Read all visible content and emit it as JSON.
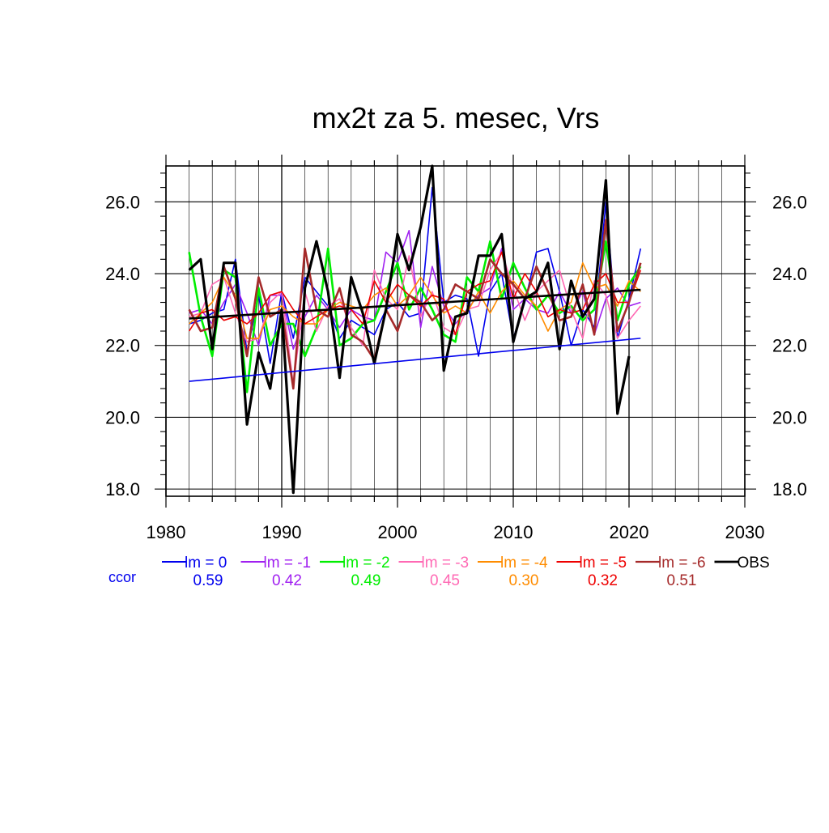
{
  "chart_data": {
    "type": "line",
    "title": "mx2t za 5. mesec, Vrs",
    "xlim": [
      1980,
      2030
    ],
    "ylim": [
      17.8,
      27.0
    ],
    "x_ticks": [
      "1980",
      "1990",
      "2000",
      "2010",
      "2020",
      "2030"
    ],
    "y_ticks": [
      "18.0",
      "20.0",
      "22.0",
      "24.0",
      "26.0"
    ],
    "grid": true,
    "legend_position": "bottom",
    "ccor_label": "ccor",
    "years": [
      1982,
      1983,
      1984,
      1985,
      1986,
      1987,
      1988,
      1989,
      1990,
      1991,
      1992,
      1993,
      1994,
      1995,
      1996,
      1997,
      1998,
      1999,
      2000,
      2001,
      2002,
      2003,
      2004,
      2005,
      2006,
      2007,
      2008,
      2009,
      2010,
      2011,
      2012,
      2013,
      2014,
      2015,
      2016,
      2017,
      2018,
      2019,
      2020,
      2021
    ],
    "series": [
      {
        "name": "lm = 0",
        "ccor": "0.59",
        "color": "#0000ee",
        "width": 1.6,
        "values": [
          22.6,
          22.7,
          22.9,
          23.0,
          24.4,
          21.8,
          23.4,
          21.5,
          23.5,
          22.2,
          23.9,
          23.5,
          23.1,
          22.2,
          22.7,
          22.5,
          22.3,
          23.0,
          23.2,
          22.8,
          22.9,
          26.4,
          23.2,
          23.4,
          23.3,
          21.7,
          23.5,
          24.0,
          22.2,
          23.2,
          24.6,
          24.7,
          23.5,
          22.0,
          23.0,
          22.5,
          26.0,
          22.2,
          23.3,
          24.7
        ]
      },
      {
        "name": "lm = -1",
        "ccor": "0.42",
        "color": "#a020f0",
        "width": 1.6,
        "values": [
          22.9,
          23.0,
          22.6,
          23.2,
          23.7,
          22.9,
          22.0,
          23.4,
          23.4,
          21.9,
          22.8,
          23.4,
          23.0,
          22.5,
          23.0,
          22.8,
          22.7,
          24.6,
          24.3,
          25.2,
          22.5,
          24.2,
          23.1,
          22.6,
          23.0,
          23.4,
          23.6,
          24.7,
          23.0,
          23.3,
          23.0,
          22.9,
          23.5,
          22.9,
          23.5,
          22.3,
          23.3,
          23.6,
          23.1,
          23.2
        ]
      },
      {
        "name": "lm = -2",
        "ccor": "0.49",
        "color": "#00ee00",
        "width": 2.6,
        "values": [
          24.6,
          22.8,
          21.7,
          24.1,
          23.9,
          20.7,
          23.6,
          22.0,
          22.6,
          22.6,
          21.7,
          22.5,
          24.7,
          22.0,
          22.2,
          22.6,
          22.7,
          23.5,
          24.3,
          23.0,
          23.6,
          23.0,
          22.3,
          22.1,
          23.9,
          23.5,
          24.9,
          23.3,
          24.3,
          23.6,
          23.0,
          23.4,
          22.9,
          23.1,
          22.7,
          23.0,
          24.9,
          22.7,
          23.7,
          24.2
        ]
      },
      {
        "name": "lm = -3",
        "ccor": "0.45",
        "color": "#ff69b4",
        "width": 1.6,
        "values": [
          22.8,
          22.9,
          23.7,
          23.9,
          22.9,
          22.1,
          22.2,
          23.2,
          23.5,
          20.9,
          23.5,
          22.4,
          23.1,
          23.3,
          22.5,
          22.0,
          24.1,
          23.3,
          23.0,
          24.5,
          22.8,
          23.5,
          22.5,
          22.3,
          23.0,
          23.1,
          24.1,
          24.6,
          23.6,
          22.7,
          23.5,
          23.8,
          24.1,
          23.0,
          22.2,
          23.8,
          23.4,
          22.2,
          22.7,
          23.1
        ]
      },
      {
        "name": "lm = -4",
        "ccor": "0.30",
        "color": "#ff8c00",
        "width": 1.6,
        "values": [
          22.6,
          22.9,
          23.2,
          23.9,
          23.4,
          22.2,
          22.2,
          23.0,
          23.1,
          22.8,
          22.6,
          22.6,
          23.0,
          23.2,
          23.1,
          23.0,
          23.4,
          23.6,
          23.1,
          23.4,
          23.9,
          23.4,
          22.9,
          23.1,
          22.9,
          23.5,
          22.9,
          23.5,
          23.8,
          23.4,
          23.1,
          22.4,
          23.0,
          23.2,
          24.3,
          23.6,
          23.7,
          23.1,
          23.8,
          23.5
        ]
      },
      {
        "name": "lm = -5",
        "ccor": "0.32",
        "color": "#ee0000",
        "width": 1.6,
        "values": [
          22.4,
          22.9,
          23.0,
          22.7,
          22.8,
          22.6,
          22.9,
          23.4,
          23.5,
          23.0,
          22.6,
          22.8,
          23.0,
          23.1,
          23.0,
          22.6,
          23.8,
          23.2,
          23.7,
          23.4,
          23.1,
          23.4,
          23.3,
          22.3,
          23.5,
          23.7,
          23.8,
          24.6,
          23.3,
          24.0,
          23.5,
          22.8,
          23.0,
          22.9,
          23.0,
          23.7,
          24.0,
          23.2,
          23.2,
          24.1
        ]
      },
      {
        "name": "lm = -6",
        "ccor": "0.51",
        "color": "#a52a2a",
        "width": 2.6,
        "values": [
          23.0,
          22.4,
          22.5,
          24.2,
          23.3,
          21.7,
          23.9,
          22.8,
          23.0,
          20.8,
          24.7,
          23.0,
          22.8,
          23.6,
          22.3,
          22.1,
          21.6,
          23.0,
          22.4,
          23.4,
          23.2,
          22.7,
          23.0,
          23.7,
          23.5,
          23.3,
          24.4,
          24.0,
          23.7,
          23.3,
          24.2,
          23.5,
          22.7,
          22.8,
          23.7,
          22.3,
          25.5,
          22.4,
          23.2,
          24.3
        ]
      },
      {
        "name": "OBS",
        "ccor": "",
        "color": "#000000",
        "width": 3.2,
        "values": [
          24.1,
          24.4,
          21.9,
          24.3,
          24.3,
          19.8,
          21.8,
          20.8,
          23.0,
          17.9,
          23.6,
          24.9,
          23.5,
          21.1,
          23.9,
          22.9,
          21.5,
          23.0,
          25.1,
          24.1,
          25.3,
          27.0,
          21.3,
          22.8,
          22.9,
          24.5,
          24.5,
          25.1,
          22.1,
          23.3,
          23.5,
          24.3,
          21.9,
          23.8,
          22.8,
          23.3,
          26.6,
          20.1,
          21.7,
          null
        ]
      }
    ],
    "trend_lines": [
      {
        "name": "lm = 0 trend",
        "color": "#0000ee",
        "width": 1.6,
        "x": [
          1982,
          2021
        ],
        "y": [
          21.0,
          22.2
        ]
      },
      {
        "name": "OBS trend",
        "color": "#000000",
        "width": 2.6,
        "x": [
          1982,
          2021
        ],
        "y": [
          22.75,
          23.55
        ]
      }
    ]
  }
}
